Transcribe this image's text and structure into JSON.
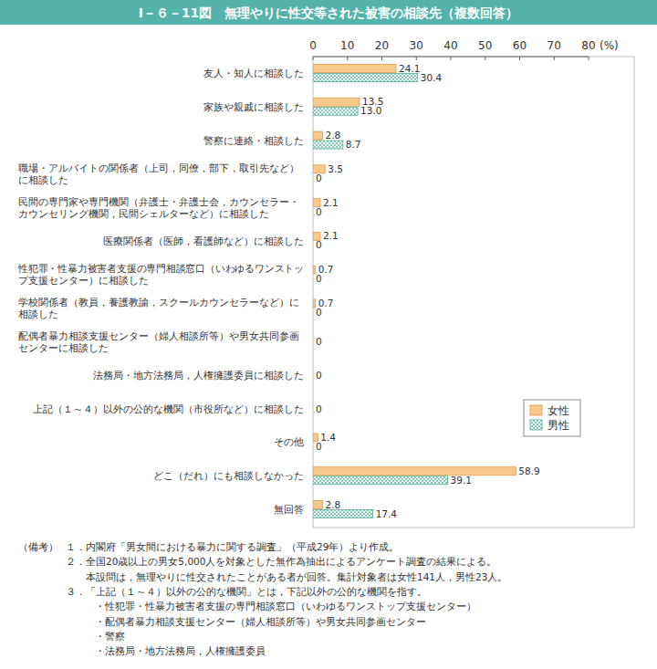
{
  "chart_data": {
    "type": "bar",
    "title": "Ⅰ－６－11図　無理やりに性交等された被害の相談先（複数回答）",
    "orientation": "horizontal",
    "data_labels": true,
    "grid": false,
    "legend": "right",
    "xlabel": "(%)",
    "xlim": [
      0,
      80
    ],
    "xticks": [
      0,
      10,
      20,
      30,
      40,
      50,
      60,
      70,
      80
    ],
    "categories": [
      "友人・知人に相談した",
      "家族や親戚に相談した",
      "警察に連絡・相談した",
      "職場・アルバイトの関係者（上司，同僚，部下，取引先など）\nに相談した",
      "民間の専門家や専門機関（弁護士・弁護士会，カウンセラー・\nカウンセリング機関，民間シェルターなど）に相談した",
      "医療関係者（医師，看護師など）に相談した",
      "性犯罪・性暴力被害者支援の専門相談窓口（いわゆるワンストッ\nプ支援センター）に相談した",
      "学校関係者（教員，養護教諭，スクールカウンセラーなど）に\n相談した",
      "配偶者暴力相談支援センター（婦人相談所等）や男女共同参画\nセンターに相談した",
      "法務局・地方法務局，人権擁護委員に相談した",
      "上記（１～４）以外の公的な機関（市役所など）に相談した",
      "その他",
      "どこ（だれ）にも相談しなかった",
      "無回答"
    ],
    "series": [
      {
        "name": "女性",
        "color": "#f9c98b",
        "values": [
          24.1,
          13.5,
          2.8,
          3.5,
          2.1,
          2.1,
          0.7,
          0.7,
          0,
          0,
          0,
          1.4,
          58.9,
          2.8
        ],
        "value_labels": [
          "24.1",
          "13.5",
          "2.8",
          "3.5",
          "2.1",
          "2.1",
          "0.7",
          "0.7",
          "0",
          "0",
          "0",
          "1.4",
          "58.9",
          "2.8"
        ]
      },
      {
        "name": "男性",
        "color": "#7fcdb9",
        "values": [
          30.4,
          13.0,
          8.7,
          0,
          0,
          0,
          0,
          0,
          0,
          0,
          0,
          0,
          39.1,
          17.4
        ],
        "value_labels": [
          "30.4",
          "13.0",
          "8.7",
          "0",
          "0",
          "0",
          "0",
          "0",
          "0",
          "0",
          "0",
          "0",
          "39.1",
          "17.4"
        ]
      }
    ]
  },
  "notes": {
    "heading": "（備考）",
    "items": [
      {
        "number": "１．",
        "lines": [
          "内閣府「男女間における暴力に関する調査」（平成29年）より作成。"
        ]
      },
      {
        "number": "２．",
        "lines": [
          "全国20歳以上の男女5,000人を対象とした無作為抽出によるアンケート調査の結果による。",
          "本設問は，無理やりに性交されたことがある者が回答。集計対象者は女性141人，男性23人。"
        ]
      },
      {
        "number": "３．",
        "lines": [
          "「上記（１～４）以外の公的な機関」とは，下記以外の公的な機関を指す。",
          "・性犯罪・性暴力被害者支援の専門相談窓口（いわゆるワンストップ支援センター）",
          "・配偶者暴力相談支援センター（婦人相談所等）や男女共同参画センター",
          "・警察",
          "・法務局・地方法務局，人権擁護委員"
        ]
      }
    ]
  }
}
